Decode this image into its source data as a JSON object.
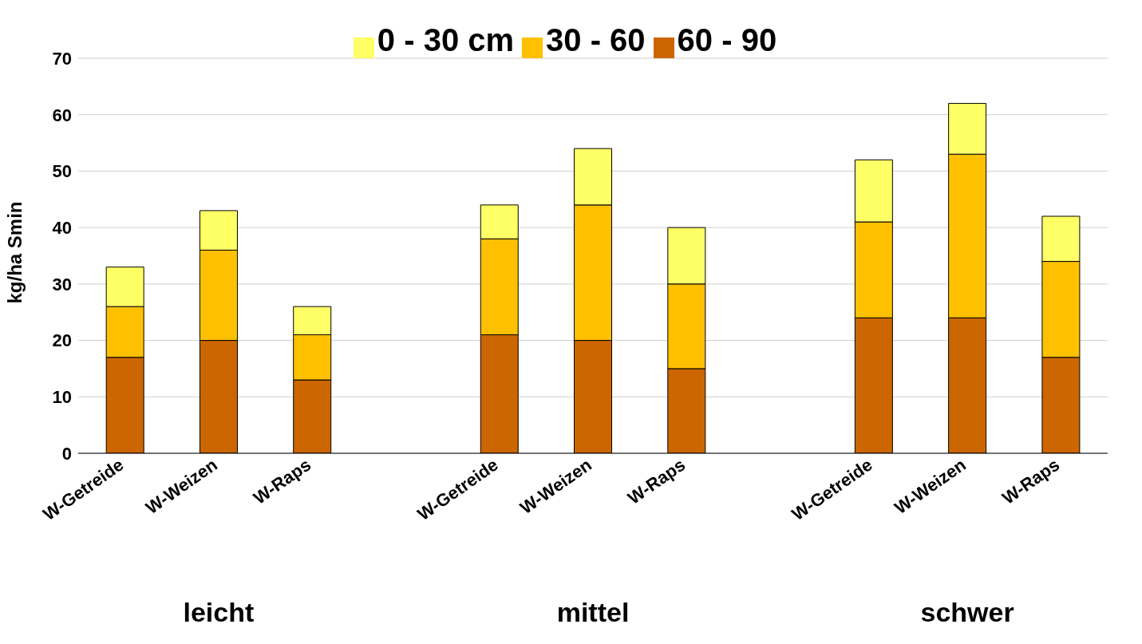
{
  "chart_data": {
    "type": "bar",
    "stacked": true,
    "ylabel": "kg/ha Smin",
    "categories": [
      "W-Getreide",
      "W-Weizen",
      "W-Raps",
      null,
      "W-Getreide",
      "W-Weizen",
      "W-Raps",
      null,
      "W-Getreide",
      "W-Weizen",
      "W-Raps"
    ],
    "series": [
      {
        "name": "60 - 90",
        "color": "#cc6600",
        "values": [
          17,
          20,
          13,
          null,
          21,
          20,
          15,
          null,
          24,
          24,
          17
        ]
      },
      {
        "name": "30 - 60",
        "color": "#ffc000",
        "values": [
          9,
          16,
          8,
          null,
          17,
          24,
          15,
          null,
          17,
          29,
          17
        ]
      },
      {
        "name": "0 - 30 cm",
        "color": "#ffff66",
        "values": [
          7,
          7,
          5,
          null,
          6,
          10,
          10,
          null,
          11,
          9,
          8
        ]
      }
    ],
    "ylim": [
      0,
      70
    ],
    "yticks": [
      0,
      10,
      20,
      30,
      40,
      50,
      60,
      70
    ],
    "grid": "y",
    "legend": "top",
    "annotations": [
      "leicht",
      "mittel",
      "schwer"
    ]
  }
}
